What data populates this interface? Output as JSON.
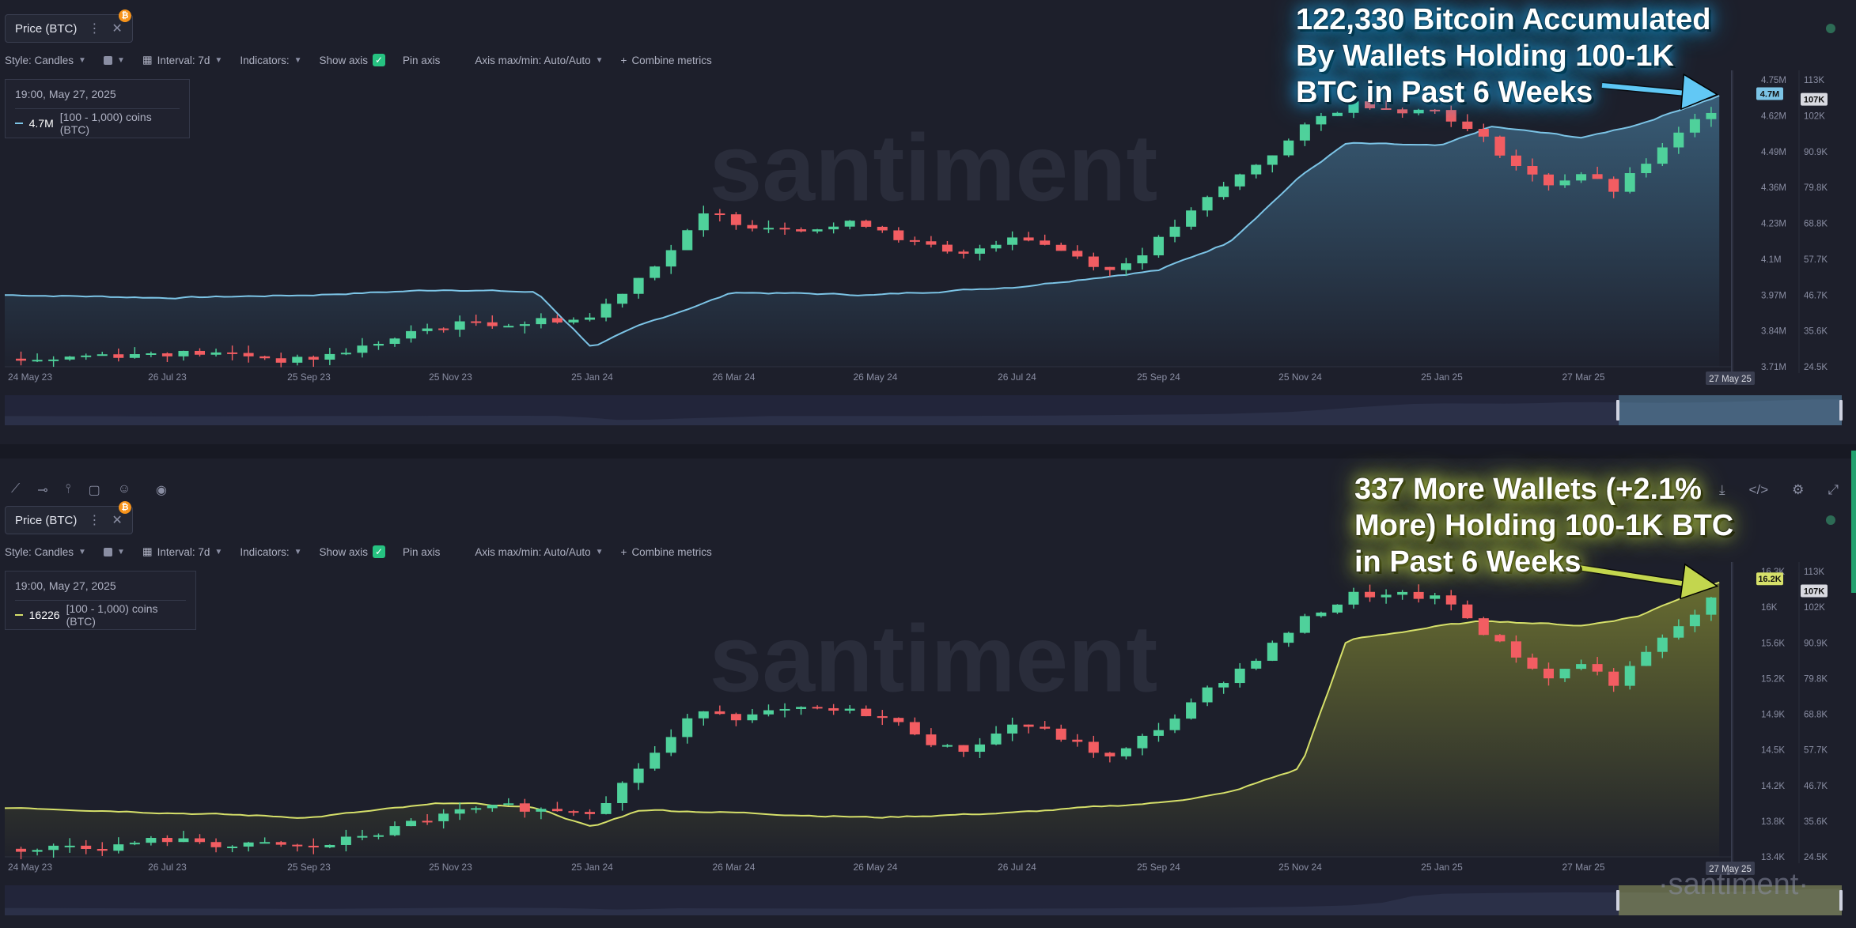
{
  "colors": {
    "up": "#4fd19b",
    "down": "#f25d62",
    "blue_line": "#7cc4e6",
    "green_line": "#d6e06a",
    "grid": "#262936",
    "axis_text": "#8a8ea3",
    "bg": "#1d1f2b",
    "btc": "#f7931a"
  },
  "icons": {
    "tab_badge": "bitcoin-icon",
    "pin": "pin-icon",
    "eye": "eye-icon",
    "download": "download-icon",
    "code": "code-icon",
    "settings": "gear-icon",
    "expand": "expand-icon"
  },
  "watermark": "santiment",
  "top": {
    "tab_label": "Price (BTC)",
    "toolbar": {
      "style": "Style: Candles",
      "interval": "Interval: 7d",
      "indicators": "Indicators:",
      "show_axis": "Show axis",
      "pin_axis": "Pin axis",
      "axis_minmax": "Axis max/min: Auto/Auto",
      "combine": "Combine metrics"
    },
    "legend": {
      "date": "19:00, May 27, 2025",
      "value": "4.7M",
      "metric": "[100 - 1,000) coins (BTC)"
    },
    "annotation": "122,330 Bitcoin Accumulated\nBy Wallets Holding 100-1K\nBTC in Past 6 Weeks",
    "badge_metric": "4.7M",
    "badge_price": "107K",
    "date_badge": "27 May 25"
  },
  "bottom": {
    "tab_label": "Price (BTC)",
    "toolbar": {
      "style": "Style: Candles",
      "interval": "Interval: 7d",
      "indicators": "Indicators:",
      "show_axis": "Show axis",
      "pin_axis": "Pin axis",
      "axis_minmax": "Axis max/min: Auto/Auto",
      "combine": "Combine metrics"
    },
    "legend": {
      "date": "19:00, May 27, 2025",
      "value": "16226",
      "metric": "[100 - 1,000) coins (BTC)"
    },
    "annotation": "337 More Wallets (+2.1%\nMore) Holding 100-1K BTC\nin Past 6 Weeks",
    "badge_metric": "16.2K",
    "badge_price": "107K",
    "date_badge": "27 May 25",
    "watermark": "·santiment·"
  },
  "chart_data": [
    {
      "type": "line",
      "title": "",
      "x_ticks": [
        "24 May 23",
        "26 Jul 23",
        "25 Sep 23",
        "25 Nov 23",
        "25 Jan 24",
        "26 Mar 24",
        "26 May 24",
        "26 Jul 24",
        "25 Sep 24",
        "25 Nov 24",
        "25 Jan 25",
        "27 Mar 25"
      ],
      "y_left_ticks": [
        "4.75M",
        "4.62M",
        "4.49M",
        "4.36M",
        "4.23M",
        "4.1M",
        "3.97M",
        "3.84M",
        "3.71M"
      ],
      "y_left_range": [
        3.71,
        4.75
      ],
      "y_right_ticks": [
        "113K",
        "102K",
        "90.9K",
        "79.8K",
        "68.8K",
        "57.7K",
        "46.7K",
        "35.6K",
        "24.5K"
      ],
      "y_right_range": [
        24.5,
        113
      ],
      "series": [
        {
          "name": "[100 - 1,000) coins (BTC)",
          "type": "area",
          "x": [
            "2023-05-24",
            "2023-07-26",
            "2023-09-25",
            "2023-11-25",
            "2024-01-01",
            "2024-01-25",
            "2024-02-15",
            "2024-03-26",
            "2024-05-26",
            "2024-07-26",
            "2024-09-25",
            "2024-10-25",
            "2024-11-25",
            "2024-12-15",
            "2025-01-25",
            "2025-02-15",
            "2025-03-27",
            "2025-04-20",
            "2025-05-27"
          ],
          "values": [
            3.97,
            3.96,
            3.97,
            3.99,
            3.98,
            3.78,
            3.86,
            3.98,
            3.97,
            4.0,
            4.06,
            4.16,
            4.4,
            4.52,
            4.51,
            4.58,
            4.54,
            4.59,
            4.7
          ]
        },
        {
          "name": "Price (BTC)",
          "type": "candles",
          "x": [
            "2023-05-24",
            "2023-07-26",
            "2023-09-25",
            "2023-11-25",
            "2024-01-25",
            "2024-03-14",
            "2024-03-26",
            "2024-05-26",
            "2024-07-01",
            "2024-07-26",
            "2024-09-06",
            "2024-09-25",
            "2024-11-25",
            "2024-12-17",
            "2025-01-25",
            "2025-03-10",
            "2025-03-27",
            "2025-04-08",
            "2025-05-27"
          ],
          "values": [
            27.0,
            29.5,
            26.5,
            37.5,
            40.0,
            71.0,
            69.0,
            68.5,
            57.0,
            66.5,
            54.5,
            64.0,
            97.0,
            106.0,
            104.0,
            80.5,
            85.0,
            78.0,
            107.0
          ]
        }
      ]
    },
    {
      "type": "line",
      "title": "",
      "x_ticks": [
        "24 May 23",
        "26 Jul 23",
        "25 Sep 23",
        "25 Nov 23",
        "25 Jan 24",
        "26 Mar 24",
        "26 May 24",
        "26 Jul 24",
        "25 Sep 24",
        "25 Nov 24",
        "25 Jan 25",
        "27 Mar 25"
      ],
      "y_left_ticks": [
        "16.3K",
        "16K",
        "15.6K",
        "15.2K",
        "14.9K",
        "14.5K",
        "14.2K",
        "13.8K",
        "13.4K"
      ],
      "y_left_range": [
        13.4,
        16.3
      ],
      "y_right_ticks": [
        "113K",
        "102K",
        "90.9K",
        "79.8K",
        "68.8K",
        "57.7K",
        "46.7K",
        "35.6K",
        "24.5K"
      ],
      "y_right_range": [
        24.5,
        113
      ],
      "series": [
        {
          "name": "[100 - 1,000) coins (BTC)",
          "type": "area",
          "x": [
            "2023-05-24",
            "2023-07-26",
            "2023-09-25",
            "2023-11-25",
            "2024-01-01",
            "2024-01-25",
            "2024-02-15",
            "2024-03-26",
            "2024-05-26",
            "2024-07-26",
            "2024-09-25",
            "2024-10-25",
            "2024-11-25",
            "2024-12-15",
            "2025-01-25",
            "2025-02-15",
            "2025-03-27",
            "2025-04-20",
            "2025-05-27"
          ],
          "values": [
            13.9,
            13.85,
            13.8,
            13.95,
            13.9,
            13.7,
            13.88,
            13.85,
            13.8,
            13.85,
            13.95,
            14.05,
            14.3,
            15.6,
            15.75,
            15.8,
            15.75,
            15.85,
            16.226
          ]
        },
        {
          "name": "Price (BTC)",
          "type": "candles",
          "x": [
            "2023-05-24",
            "2023-07-26",
            "2023-09-25",
            "2023-11-25",
            "2024-01-25",
            "2024-03-14",
            "2024-03-26",
            "2024-05-26",
            "2024-07-01",
            "2024-07-26",
            "2024-09-06",
            "2024-09-25",
            "2024-11-25",
            "2024-12-17",
            "2025-01-25",
            "2025-03-10",
            "2025-03-27",
            "2025-04-08",
            "2025-05-27"
          ],
          "values": [
            27.0,
            29.5,
            26.5,
            37.5,
            40.0,
            71.0,
            69.0,
            68.5,
            57.0,
            66.5,
            54.5,
            64.0,
            97.0,
            106.0,
            104.0,
            80.5,
            85.0,
            78.0,
            107.0
          ]
        }
      ]
    }
  ]
}
